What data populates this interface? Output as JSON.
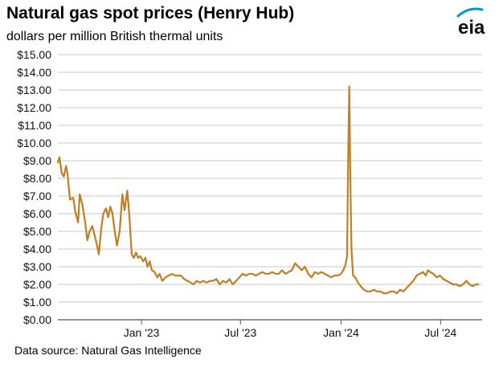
{
  "header": {
    "title": "Natural gas spot prices (Henry Hub)",
    "subtitle": "dollars per million British thermal units"
  },
  "logo": {
    "text": "eia",
    "icon": "eia-logo-icon",
    "color": "#0096d6"
  },
  "footer": {
    "source": "Data source: Natural Gas Intelligence"
  },
  "chart_data": {
    "type": "line",
    "title": "Natural gas spot prices (Henry Hub)",
    "subtitle": "dollars per million British thermal units",
    "xlabel": "",
    "ylabel": "",
    "ylim": [
      0,
      15
    ],
    "xlim": [
      "2022-08-01",
      "2024-09-15"
    ],
    "grid": true,
    "line_color": "#c27e22",
    "y_ticks": [
      {
        "value": 0,
        "label": "$0.00"
      },
      {
        "value": 1,
        "label": "$1.00"
      },
      {
        "value": 2,
        "label": "$2.00"
      },
      {
        "value": 3,
        "label": "$3.00"
      },
      {
        "value": 4,
        "label": "$4.00"
      },
      {
        "value": 5,
        "label": "$5.00"
      },
      {
        "value": 6,
        "label": "$6.00"
      },
      {
        "value": 7,
        "label": "$7.00"
      },
      {
        "value": 8,
        "label": "$8.00"
      },
      {
        "value": 9,
        "label": "$9.00"
      },
      {
        "value": 10,
        "label": "$10.00"
      },
      {
        "value": 11,
        "label": "$11.00"
      },
      {
        "value": 12,
        "label": "$12.00"
      },
      {
        "value": 13,
        "label": "$13.00"
      },
      {
        "value": 14,
        "label": "$14.00"
      },
      {
        "value": 15,
        "label": "$15.00"
      }
    ],
    "x_ticks": [
      {
        "value": "2023-01-01",
        "label": "Jan '23"
      },
      {
        "value": "2023-07-01",
        "label": "Jul '23"
      },
      {
        "value": "2024-01-01",
        "label": "Jan '24"
      },
      {
        "value": "2024-07-01",
        "label": "Jul '24"
      }
    ],
    "series": [
      {
        "name": "",
        "points": [
          [
            "2022-08-01",
            8.9
          ],
          [
            "2022-08-04",
            9.2
          ],
          [
            "2022-08-08",
            8.3
          ],
          [
            "2022-08-12",
            8.1
          ],
          [
            "2022-08-16",
            8.7
          ],
          [
            "2022-08-19",
            8.2
          ],
          [
            "2022-08-23",
            6.8
          ],
          [
            "2022-08-29",
            6.9
          ],
          [
            "2022-09-02",
            6.1
          ],
          [
            "2022-09-07",
            5.5
          ],
          [
            "2022-09-10",
            7.1
          ],
          [
            "2022-09-15",
            6.5
          ],
          [
            "2022-09-20",
            5.5
          ],
          [
            "2022-09-24",
            4.5
          ],
          [
            "2022-09-28",
            5.0
          ],
          [
            "2022-10-03",
            5.3
          ],
          [
            "2022-10-07",
            4.8
          ],
          [
            "2022-10-11",
            4.3
          ],
          [
            "2022-10-15",
            3.7
          ],
          [
            "2022-10-19",
            5.1
          ],
          [
            "2022-10-23",
            6.0
          ],
          [
            "2022-10-28",
            6.3
          ],
          [
            "2022-11-01",
            5.8
          ],
          [
            "2022-11-05",
            6.4
          ],
          [
            "2022-11-09",
            6.0
          ],
          [
            "2022-11-13",
            5.0
          ],
          [
            "2022-11-17",
            4.2
          ],
          [
            "2022-11-22",
            5.0
          ],
          [
            "2022-11-27",
            7.1
          ],
          [
            "2022-12-01",
            6.2
          ],
          [
            "2022-12-06",
            7.3
          ],
          [
            "2022-12-10",
            5.8
          ],
          [
            "2022-12-14",
            3.7
          ],
          [
            "2022-12-18",
            3.5
          ],
          [
            "2022-12-22",
            3.8
          ],
          [
            "2022-12-26",
            3.5
          ],
          [
            "2022-12-30",
            3.6
          ],
          [
            "2023-01-04",
            3.3
          ],
          [
            "2023-01-08",
            3.5
          ],
          [
            "2023-01-12",
            3.0
          ],
          [
            "2023-01-16",
            3.3
          ],
          [
            "2023-01-20",
            2.8
          ],
          [
            "2023-01-25",
            2.7
          ],
          [
            "2023-01-30",
            2.4
          ],
          [
            "2023-02-03",
            2.6
          ],
          [
            "2023-02-08",
            2.2
          ],
          [
            "2023-02-14",
            2.4
          ],
          [
            "2023-02-20",
            2.5
          ],
          [
            "2023-02-26",
            2.6
          ],
          [
            "2023-03-03",
            2.5
          ],
          [
            "2023-03-08",
            2.5
          ],
          [
            "2023-03-14",
            2.5
          ],
          [
            "2023-03-20",
            2.3
          ],
          [
            "2023-03-26",
            2.2
          ],
          [
            "2023-04-01",
            2.1
          ],
          [
            "2023-04-06",
            2.0
          ],
          [
            "2023-04-12",
            2.2
          ],
          [
            "2023-04-18",
            2.1
          ],
          [
            "2023-04-24",
            2.2
          ],
          [
            "2023-04-30",
            2.1
          ],
          [
            "2023-05-06",
            2.2
          ],
          [
            "2023-05-12",
            2.2
          ],
          [
            "2023-05-18",
            2.3
          ],
          [
            "2023-05-24",
            2.0
          ],
          [
            "2023-05-30",
            2.2
          ],
          [
            "2023-06-05",
            2.1
          ],
          [
            "2023-06-11",
            2.3
          ],
          [
            "2023-06-17",
            2.0
          ],
          [
            "2023-06-23",
            2.2
          ],
          [
            "2023-06-29",
            2.4
          ],
          [
            "2023-07-05",
            2.6
          ],
          [
            "2023-07-11",
            2.5
          ],
          [
            "2023-07-17",
            2.6
          ],
          [
            "2023-07-23",
            2.6
          ],
          [
            "2023-07-29",
            2.5
          ],
          [
            "2023-08-04",
            2.6
          ],
          [
            "2023-08-10",
            2.7
          ],
          [
            "2023-08-16",
            2.6
          ],
          [
            "2023-08-22",
            2.6
          ],
          [
            "2023-08-28",
            2.7
          ],
          [
            "2023-09-03",
            2.6
          ],
          [
            "2023-09-09",
            2.6
          ],
          [
            "2023-09-15",
            2.8
          ],
          [
            "2023-09-21",
            2.6
          ],
          [
            "2023-09-27",
            2.7
          ],
          [
            "2023-10-03",
            2.8
          ],
          [
            "2023-10-09",
            3.2
          ],
          [
            "2023-10-15",
            3.0
          ],
          [
            "2023-10-21",
            2.8
          ],
          [
            "2023-10-27",
            3.0
          ],
          [
            "2023-11-02",
            2.6
          ],
          [
            "2023-11-08",
            2.4
          ],
          [
            "2023-11-14",
            2.7
          ],
          [
            "2023-11-20",
            2.6
          ],
          [
            "2023-11-26",
            2.7
          ],
          [
            "2023-12-02",
            2.6
          ],
          [
            "2023-12-08",
            2.5
          ],
          [
            "2023-12-14",
            2.4
          ],
          [
            "2023-12-20",
            2.5
          ],
          [
            "2023-12-26",
            2.5
          ],
          [
            "2024-01-01",
            2.6
          ],
          [
            "2024-01-05",
            2.8
          ],
          [
            "2024-01-09",
            3.1
          ],
          [
            "2024-01-12",
            3.6
          ],
          [
            "2024-01-14",
            9.0
          ],
          [
            "2024-01-16",
            13.2
          ],
          [
            "2024-01-18",
            8.0
          ],
          [
            "2024-01-20",
            4.0
          ],
          [
            "2024-01-23",
            2.5
          ],
          [
            "2024-01-27",
            2.4
          ],
          [
            "2024-02-01",
            2.1
          ],
          [
            "2024-02-06",
            1.9
          ],
          [
            "2024-02-12",
            1.7
          ],
          [
            "2024-02-18",
            1.6
          ],
          [
            "2024-02-24",
            1.6
          ],
          [
            "2024-03-01",
            1.7
          ],
          [
            "2024-03-07",
            1.6
          ],
          [
            "2024-03-13",
            1.6
          ],
          [
            "2024-03-19",
            1.5
          ],
          [
            "2024-03-25",
            1.5
          ],
          [
            "2024-03-31",
            1.6
          ],
          [
            "2024-04-06",
            1.6
          ],
          [
            "2024-04-12",
            1.5
          ],
          [
            "2024-04-18",
            1.7
          ],
          [
            "2024-04-24",
            1.6
          ],
          [
            "2024-04-30",
            1.8
          ],
          [
            "2024-05-06",
            2.0
          ],
          [
            "2024-05-12",
            2.2
          ],
          [
            "2024-05-18",
            2.5
          ],
          [
            "2024-05-24",
            2.6
          ],
          [
            "2024-05-30",
            2.7
          ],
          [
            "2024-06-04",
            2.5
          ],
          [
            "2024-06-08",
            2.8
          ],
          [
            "2024-06-12",
            2.7
          ],
          [
            "2024-06-18",
            2.6
          ],
          [
            "2024-06-24",
            2.4
          ],
          [
            "2024-06-30",
            2.5
          ],
          [
            "2024-07-06",
            2.3
          ],
          [
            "2024-07-12",
            2.2
          ],
          [
            "2024-07-18",
            2.1
          ],
          [
            "2024-07-24",
            2.0
          ],
          [
            "2024-07-30",
            2.0
          ],
          [
            "2024-08-05",
            1.9
          ],
          [
            "2024-08-11",
            2.0
          ],
          [
            "2024-08-17",
            2.2
          ],
          [
            "2024-08-23",
            2.0
          ],
          [
            "2024-08-29",
            1.9
          ],
          [
            "2024-09-03",
            2.0
          ],
          [
            "2024-09-08",
            2.0
          ]
        ]
      }
    ]
  }
}
